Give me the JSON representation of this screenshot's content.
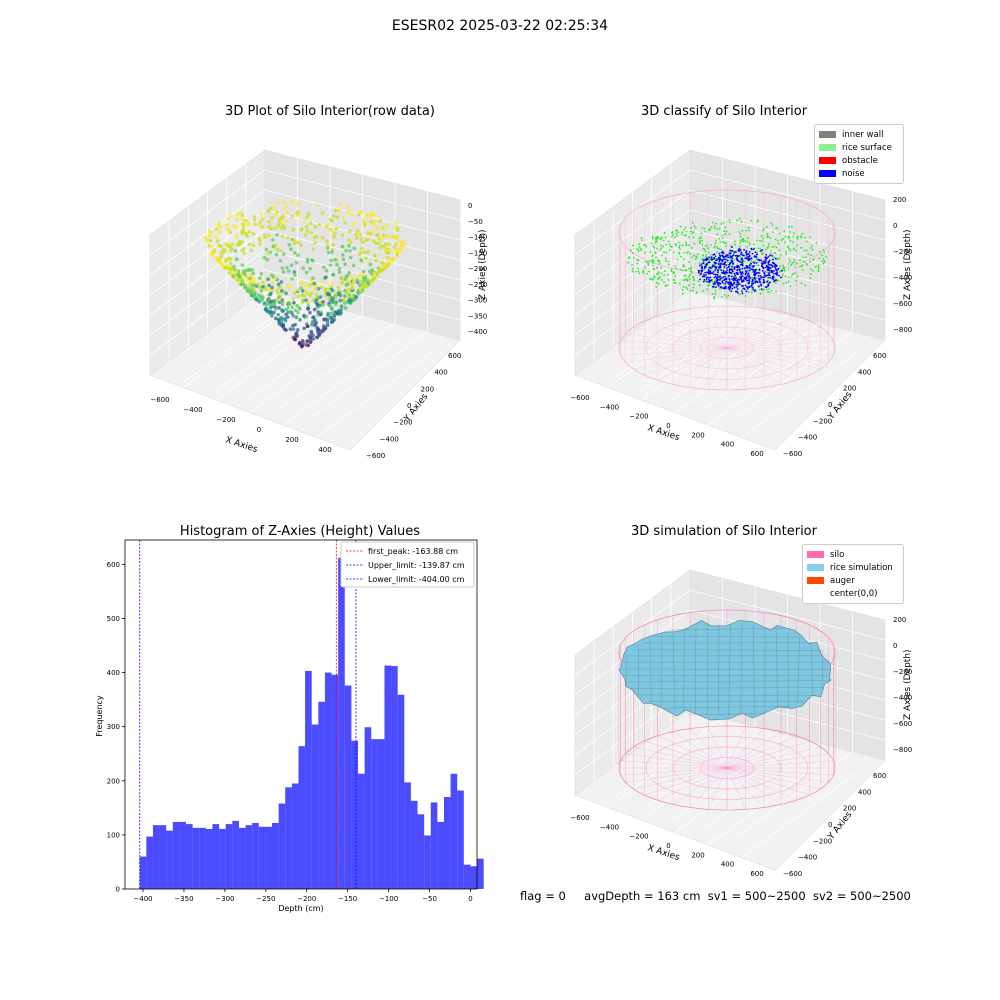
{
  "suptitle": "ESESR02 2025-03-22 02:25:34",
  "panels": {
    "raw": {
      "title": "3D Plot of Silo Interior(row data)",
      "xlabel": "X Axies",
      "ylabel": "Y Axies",
      "zlabel": "Z Axies (Depth)",
      "xticks": [
        "−600",
        "−400",
        "−200",
        "0",
        "200",
        "400"
      ],
      "yticks": [
        "600",
        "400",
        "200",
        "0",
        "−200",
        "−400",
        "−600"
      ],
      "zticks": [
        "0",
        "−50",
        "−100",
        "−150",
        "−200",
        "−250",
        "−300",
        "−350",
        "−400"
      ]
    },
    "classify": {
      "title": "3D classify of Silo Interior",
      "xlabel": "X Axies",
      "ylabel": "Y Axies",
      "zlabel": "Z Axies (Depth)",
      "xticks": [
        "−600",
        "−400",
        "−200",
        "0",
        "200",
        "400",
        "600"
      ],
      "yticks": [
        "600",
        "400",
        "200",
        "0",
        "−200",
        "−400",
        "−600"
      ],
      "zticks": [
        "200",
        "0",
        "−200",
        "−400",
        "−600",
        "−800"
      ],
      "legend": [
        {
          "label": "inner wall",
          "color": "#808080"
        },
        {
          "label": "rice surface",
          "color": "#90ee90"
        },
        {
          "label": "obstacle",
          "color": "#ff0000"
        },
        {
          "label": "noise",
          "color": "#0000ff"
        }
      ]
    },
    "sim": {
      "title": "3D simulation of Silo Interior",
      "xlabel": "X Axies",
      "ylabel": "Y Axies",
      "zlabel": "Z Axies (Depth)",
      "xticks": [
        "−600",
        "−400",
        "−200",
        "0",
        "200",
        "400",
        "600"
      ],
      "yticks": [
        "600",
        "400",
        "200",
        "0",
        "−200",
        "−400",
        "−600"
      ],
      "zticks": [
        "200",
        "0",
        "−200",
        "−400",
        "−600",
        "−800"
      ],
      "legend": [
        {
          "label": "silo",
          "color": "#ff69b4"
        },
        {
          "label": "rice simulation",
          "color": "#87ceeb"
        },
        {
          "label": "auger",
          "color": "#ff4500"
        },
        {
          "label": "center(0,0)",
          "color": "#ffffff"
        }
      ]
    }
  },
  "chart_data": {
    "type": "bar",
    "title": "Histogram of Z-Axies (Height) Values",
    "xlabel": "Depth (cm)",
    "ylabel": "Frequency",
    "xlim": [
      -422,
      8
    ],
    "ylim": [
      0,
      645
    ],
    "xticks": [
      -400,
      -350,
      -300,
      -250,
      -200,
      -150,
      -100,
      -50,
      0
    ],
    "xtick_labels": [
      "−400",
      "−350",
      "−300",
      "−250",
      "−200",
      "−150",
      "−100",
      "−50",
      "0"
    ],
    "yticks": [
      0,
      100,
      200,
      300,
      400,
      500,
      600
    ],
    "bin_start": -404,
    "bin_width": 8.08,
    "values": [
      60,
      97,
      118,
      118,
      108,
      124,
      124,
      120,
      113,
      113,
      111,
      120,
      111,
      120,
      126,
      113,
      118,
      122,
      115,
      115,
      122,
      158,
      188,
      195,
      264,
      403,
      304,
      346,
      400,
      396,
      612,
      376,
      274,
      213,
      299,
      277,
      277,
      413,
      412,
      359,
      197,
      163,
      138,
      99,
      160,
      124,
      170,
      213,
      182,
      45,
      42,
      56
    ],
    "bar_color": "#0000ff",
    "vlines": [
      {
        "name": "first_peak: -163.88 cm",
        "x": -163.88,
        "color": "#ff0000"
      },
      {
        "name": "Upper_limit: -139.87 cm",
        "x": -139.87,
        "color": "#0000ff"
      },
      {
        "name": "Lower_limit: -404.00 cm",
        "x": -404.0,
        "color": "#0000ff"
      }
    ],
    "legend_position": "top-right"
  },
  "footer": {
    "flag": "flag = 0",
    "avg": "avgDepth = 163 cm",
    "sv1": "sv1 = 500~2500",
    "sv2": "sv2 = 500~2500"
  }
}
